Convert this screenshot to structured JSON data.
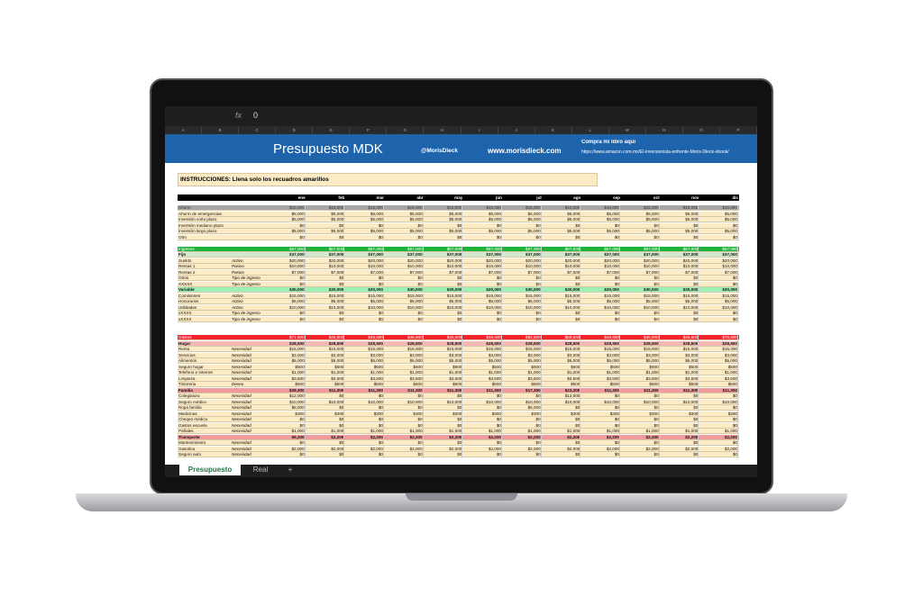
{
  "formula_bar": {
    "fx": "fx",
    "value": "0"
  },
  "column_headers": [
    "A",
    "B",
    "C",
    "D",
    "E",
    "F",
    "G",
    "H",
    "I",
    "J",
    "K",
    "L",
    "M",
    "N",
    "O",
    "P"
  ],
  "banner": {
    "title": "Presupuesto MDK",
    "handle": "@MorisDieck",
    "website": "www.morisdieck.com",
    "book_label": "Compra mi libro aquí",
    "book_url": "https://www.amazon.com.mx/El-inversionista-enfrente-Moris-Dieck-ebook/"
  },
  "instructions": "INSTRUCCIONES: Llena solo los recuadros amarillos",
  "months": [
    "ene",
    "feb",
    "mar",
    "abr",
    "may",
    "jun",
    "jul",
    "ago",
    "sep",
    "oct",
    "nov",
    "dic"
  ],
  "sections": [
    {
      "name": "Ahorro",
      "color": "#a6a6a6",
      "values": [
        "$15,000",
        "$15,000",
        "$15,000",
        "$15,000",
        "$15,000",
        "$15,000",
        "$15,000",
        "$15,000",
        "$15,000",
        "$15,000",
        "$15,000",
        "$15,000"
      ],
      "rows": [
        {
          "label": "Ahorro de emergencias",
          "values": [
            "$5,000",
            "$5,000",
            "$5,000",
            "$5,000",
            "$5,000",
            "$5,000",
            "$5,000",
            "$5,000",
            "$5,000",
            "$5,000",
            "$5,000",
            "$5,000"
          ]
        },
        {
          "label": "Inversión corto plazo",
          "values": [
            "$5,000",
            "$5,000",
            "$5,000",
            "$5,000",
            "$5,000",
            "$5,000",
            "$5,000",
            "$5,000",
            "$5,000",
            "$5,000",
            "$5,000",
            "$5,000"
          ]
        },
        {
          "label": "Inversión mediano plazo",
          "values": [
            "$0",
            "$0",
            "$0",
            "$0",
            "$0",
            "$0",
            "$0",
            "$0",
            "$0",
            "$0",
            "$0",
            "$0"
          ]
        },
        {
          "label": "Inversión largo plazo",
          "values": [
            "$5,000",
            "$5,000",
            "$5,000",
            "$5,000",
            "$5,000",
            "$5,000",
            "$5,000",
            "$5,000",
            "$5,000",
            "$5,000",
            "$5,000",
            "$5,000"
          ]
        },
        {
          "label": "Otro",
          "values": [
            "$0",
            "$0",
            "$0",
            "$0",
            "$0",
            "$0",
            "$0",
            "$0",
            "$0",
            "$0",
            "$0",
            "$0"
          ]
        }
      ]
    },
    {
      "name": "Ingresos",
      "color": "#1db33a",
      "values": [
        "$67,000",
        "$67,000",
        "$67,000",
        "$67,000",
        "$67,000",
        "$67,000",
        "$67,000",
        "$67,000",
        "$67,000",
        "$67,000",
        "$67,000",
        "$67,000"
      ],
      "rows": [
        {
          "label": "Fijo",
          "color": "#d4e8cf",
          "values": [
            "$37,000",
            "$37,000",
            "$37,000",
            "$37,000",
            "$37,000",
            "$37,000",
            "$37,000",
            "$37,000",
            "$37,000",
            "$37,000",
            "$37,000",
            "$37,000"
          ]
        },
        {
          "label": "Sueldo",
          "kind": "Activo",
          "values": [
            "$20,000",
            "$20,000",
            "$20,000",
            "$20,000",
            "$20,000",
            "$20,000",
            "$20,000",
            "$20,000",
            "$20,000",
            "$20,000",
            "$20,000",
            "$20,000"
          ]
        },
        {
          "label": "Rentas 1",
          "kind": "Pasivo",
          "values": [
            "$10,000",
            "$10,000",
            "$10,000",
            "$10,000",
            "$10,000",
            "$10,000",
            "$10,000",
            "$10,000",
            "$10,000",
            "$10,000",
            "$10,000",
            "$10,000"
          ]
        },
        {
          "label": "Rentas 2",
          "kind": "Pasivo",
          "values": [
            "$7,000",
            "$7,000",
            "$7,000",
            "$7,000",
            "$7,000",
            "$7,000",
            "$7,000",
            "$7,000",
            "$7,000",
            "$7,000",
            "$7,000",
            "$7,000"
          ]
        },
        {
          "label": "Otros",
          "kind": "Tipo de ingreso",
          "values": [
            "$0",
            "$0",
            "$0",
            "$0",
            "$0",
            "$0",
            "$0",
            "$0",
            "$0",
            "$0",
            "$0",
            "$0"
          ]
        },
        {
          "label": "XXXXX",
          "kind": "Tipo de ingreso",
          "values": [
            "$0",
            "$0",
            "$0",
            "$0",
            "$0",
            "$0",
            "$0",
            "$0",
            "$0",
            "$0",
            "$0",
            "$0"
          ]
        },
        {
          "label": "Variable",
          "color": "#9ff0b4",
          "values": [
            "$30,000",
            "$30,000",
            "$30,000",
            "$30,000",
            "$30,000",
            "$30,000",
            "$30,000",
            "$30,000",
            "$30,000",
            "$30,000",
            "$30,000",
            "$30,000"
          ]
        },
        {
          "label": "Comisiones",
          "kind": "Activo",
          "values": [
            "$15,000",
            "$15,000",
            "$15,000",
            "$15,000",
            "$15,000",
            "$15,000",
            "$15,000",
            "$15,000",
            "$15,000",
            "$15,000",
            "$15,000",
            "$15,000"
          ]
        },
        {
          "label": "Honorarios",
          "kind": "Activo",
          "values": [
            "$5,000",
            "$5,000",
            "$5,000",
            "$5,000",
            "$5,000",
            "$5,000",
            "$5,000",
            "$5,000",
            "$5,000",
            "$5,000",
            "$5,000",
            "$5,000"
          ]
        },
        {
          "label": "Utilidades",
          "kind": "Activo",
          "values": [
            "$10,000",
            "$10,000",
            "$10,000",
            "$10,000",
            "$10,000",
            "$10,000",
            "$10,000",
            "$10,000",
            "$10,000",
            "$10,000",
            "$10,000",
            "$10,000"
          ]
        },
        {
          "label": "xXXXX",
          "kind": "Tipo de ingreso",
          "values": [
            "$0",
            "$0",
            "$0",
            "$0",
            "$0",
            "$0",
            "$0",
            "$0",
            "$0",
            "$0",
            "$0",
            "$0"
          ]
        },
        {
          "label": "xXXXX",
          "kind": "Tipo de ingreso",
          "values": [
            "$0",
            "$0",
            "$0",
            "$0",
            "$0",
            "$0",
            "$0",
            "$0",
            "$0",
            "$0",
            "$0",
            "$0"
          ]
        }
      ]
    },
    {
      "name": "Gastos",
      "color": "#f2232a",
      "values": [
        "$71,600",
        "$46,600",
        "$46,600",
        "$46,600",
        "$46,600",
        "$46,600",
        "$82,600",
        "$58,600",
        "$46,600",
        "$46,600",
        "$46,600",
        "$76,600"
      ],
      "rows": [
        {
          "label": "Hogar",
          "color": "#f4b9b4",
          "values": [
            "$28,500",
            "$28,500",
            "$28,500",
            "$28,500",
            "$28,500",
            "$28,500",
            "$28,500",
            "$28,500",
            "$28,500",
            "$28,500",
            "$28,500",
            "$28,500"
          ]
        },
        {
          "label": "Renta",
          "kind": "Necesidad",
          "values": [
            "$15,000",
            "$15,000",
            "$15,000",
            "$15,000",
            "$15,000",
            "$15,000",
            "$15,000",
            "$15,000",
            "$15,000",
            "$15,000",
            "$15,000",
            "$15,000"
          ]
        },
        {
          "label": "Servicios",
          "kind": "Necesidad",
          "values": [
            "$3,000",
            "$3,000",
            "$3,000",
            "$3,000",
            "$3,000",
            "$3,000",
            "$3,000",
            "$3,000",
            "$3,000",
            "$3,000",
            "$3,000",
            "$3,000"
          ]
        },
        {
          "label": "Alimentos",
          "kind": "Necesidad",
          "values": [
            "$5,000",
            "$5,000",
            "$5,000",
            "$5,000",
            "$5,000",
            "$5,000",
            "$5,000",
            "$5,000",
            "$5,000",
            "$5,000",
            "$5,000",
            "$5,000"
          ]
        },
        {
          "label": "Seguro hogar",
          "kind": "Necesidad",
          "values": [
            "$500",
            "$500",
            "$500",
            "$500",
            "$500",
            "$500",
            "$500",
            "$500",
            "$500",
            "$500",
            "$500",
            "$500"
          ]
        },
        {
          "label": "Telefono e internet",
          "kind": "Necesidad",
          "values": [
            "$1,000",
            "$1,000",
            "$1,000",
            "$1,000",
            "$1,000",
            "$1,000",
            "$1,000",
            "$1,000",
            "$1,000",
            "$1,000",
            "$1,000",
            "$1,000"
          ]
        },
        {
          "label": "Limpieza",
          "kind": "Necesidad",
          "values": [
            "$3,500",
            "$3,500",
            "$3,500",
            "$3,500",
            "$3,500",
            "$3,500",
            "$3,500",
            "$3,500",
            "$3,500",
            "$3,500",
            "$3,500",
            "$3,500"
          ]
        },
        {
          "label": "Tintoreria",
          "kind": "Deseo",
          "values": [
            "$500",
            "$500",
            "$500",
            "$500",
            "$500",
            "$500",
            "$500",
            "$500",
            "$500",
            "$500",
            "$500",
            "$500"
          ]
        },
        {
          "label": "Familia",
          "color": "#f19c9c",
          "values": [
            "$29,300",
            "$11,300",
            "$11,300",
            "$11,300",
            "$11,300",
            "$11,300",
            "$17,300",
            "$23,300",
            "$11,300",
            "$11,300",
            "$11,300",
            "$11,300"
          ]
        },
        {
          "label": "Colegiatura",
          "kind": "Necesidad",
          "values": [
            "$12,000",
            "$0",
            "$0",
            "$0",
            "$0",
            "$0",
            "$0",
            "$12,000",
            "$0",
            "$0",
            "$0",
            "$0"
          ]
        },
        {
          "label": "Seguro médico",
          "kind": "Necesidad",
          "values": [
            "$10,000",
            "$10,000",
            "$10,000",
            "$10,000",
            "$10,000",
            "$10,000",
            "$10,000",
            "$10,000",
            "$10,000",
            "$10,000",
            "$10,000",
            "$10,000"
          ]
        },
        {
          "label": "Ropa familia",
          "kind": "Necesidad",
          "values": [
            "$6,000",
            "$0",
            "$0",
            "$0",
            "$0",
            "$0",
            "$6,000",
            "$0",
            "$0",
            "$0",
            "$0",
            "$0"
          ]
        },
        {
          "label": "Medicinas",
          "kind": "Necesidad",
          "values": [
            "$300",
            "$300",
            "$300",
            "$300",
            "$300",
            "$300",
            "$300",
            "$300",
            "$300",
            "$300",
            "$300",
            "$300"
          ]
        },
        {
          "label": "Cheqeo médico",
          "kind": "Necesidad",
          "values": [
            "$0",
            "$0",
            "$0",
            "$0",
            "$0",
            "$0",
            "$0",
            "$0",
            "$0",
            "$0",
            "$0",
            "$0"
          ]
        },
        {
          "label": "Gastos escuela",
          "kind": "Necesidad",
          "values": [
            "$0",
            "$0",
            "$0",
            "$0",
            "$0",
            "$0",
            "$0",
            "$0",
            "$0",
            "$0",
            "$0",
            "$0"
          ]
        },
        {
          "label": "Pañales",
          "kind": "Necesidad",
          "values": [
            "$1,000",
            "$1,000",
            "$1,000",
            "$1,000",
            "$1,000",
            "$1,000",
            "$1,000",
            "$1,000",
            "$1,000",
            "$1,000",
            "$1,000",
            "$1,000"
          ]
        },
        {
          "label": "Transporte",
          "color": "#f19c9c",
          "values": [
            "$9,200",
            "$2,200",
            "$2,200",
            "$2,200",
            "$2,200",
            "$2,200",
            "$2,200",
            "$2,200",
            "$2,200",
            "$2,200",
            "$2,200",
            "$2,200"
          ]
        },
        {
          "label": "Mantenimiento",
          "kind": "Necesidad",
          "values": [
            "$0",
            "$0",
            "$0",
            "$0",
            "$0",
            "$0",
            "$0",
            "$0",
            "$0",
            "$0",
            "$0",
            "$0"
          ]
        },
        {
          "label": "Gasolina",
          "kind": "Necesidad",
          "values": [
            "$2,000",
            "$2,000",
            "$2,000",
            "$2,000",
            "$2,000",
            "$2,000",
            "$2,000",
            "$2,000",
            "$2,000",
            "$2,000",
            "$2,000",
            "$2,000"
          ]
        },
        {
          "label": "Seguro auto",
          "kind": "Necesidad",
          "values": [
            "$0",
            "$0",
            "$0",
            "$0",
            "$0",
            "$0",
            "$0",
            "$0",
            "$0",
            "$0",
            "$0",
            "$0"
          ]
        }
      ]
    }
  ],
  "tabs": [
    "Presupuesto",
    "Real",
    "+"
  ]
}
